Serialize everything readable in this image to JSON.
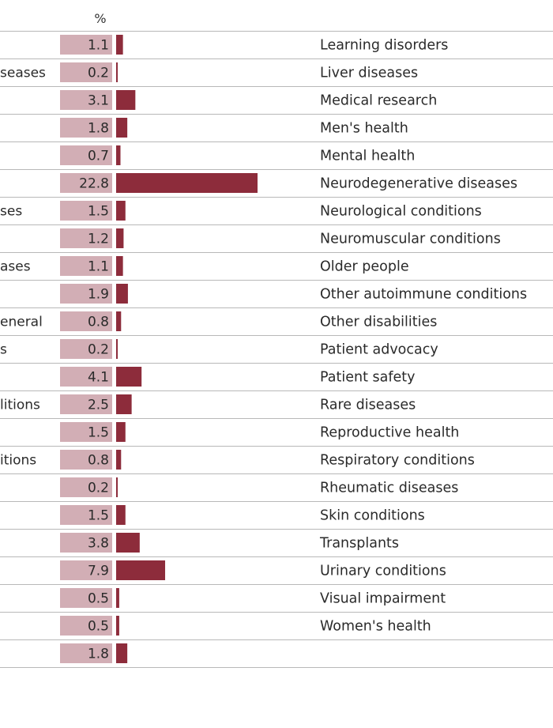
{
  "header": {
    "unit_label": "%"
  },
  "colors": {
    "value_box": "#d2aeb5",
    "bar": "#8d2c3b",
    "rule": "#b8b8b8"
  },
  "truncated_left_labels": [
    "seases",
    "ses",
    "ases",
    "eneral",
    "s",
    "litions",
    "itions"
  ],
  "chart_data": {
    "type": "bar",
    "orientation": "horizontal",
    "unit": "%",
    "categories": [
      "Learning disorders",
      "Liver diseases",
      "Medical research",
      "Men's health",
      "Mental health",
      "Neurodegenerative diseases",
      "Neurological conditions",
      "Neuromuscular conditions",
      "Older people",
      "Other autoimmune conditions",
      "Other disabilities",
      "Patient advocacy",
      "Patient safety",
      "Rare diseases",
      "Reproductive health",
      "Respiratory conditions",
      "Rheumatic diseases",
      "Skin conditions",
      "Transplants",
      "Urinary conditions",
      "Visual impairment",
      "Women's health",
      ""
    ],
    "values": [
      1.1,
      0.2,
      3.1,
      1.8,
      0.7,
      22.8,
      1.5,
      1.2,
      1.1,
      1.9,
      0.8,
      0.2,
      4.1,
      2.5,
      1.5,
      0.8,
      0.2,
      1.5,
      3.8,
      7.9,
      0.5,
      0.5,
      1.8
    ],
    "left_cut_labels": [
      "",
      "seases",
      "",
      "",
      "",
      "",
      "ses",
      "",
      "ases",
      "",
      "eneral",
      "s",
      "",
      "litions",
      "",
      "itions",
      "",
      "",
      "",
      "",
      "",
      "",
      ""
    ],
    "xlim": [
      0,
      22.8
    ],
    "grid": false,
    "legend": "none"
  }
}
